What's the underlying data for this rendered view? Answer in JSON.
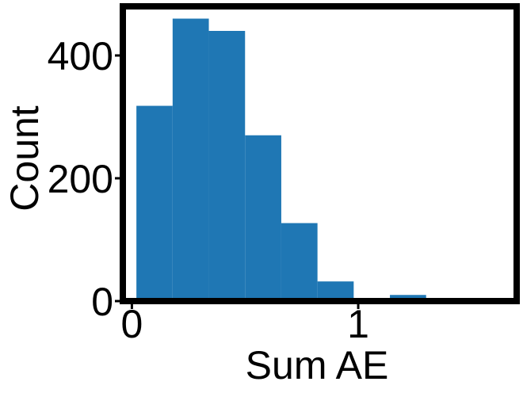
{
  "chart_data": {
    "type": "bar",
    "subtype": "histogram",
    "title": "",
    "xlabel": "Sum AE",
    "ylabel": "Count",
    "bins": [
      {
        "x0": 0.02,
        "x1": 0.18,
        "count": 318
      },
      {
        "x0": 0.18,
        "x1": 0.34,
        "count": 460
      },
      {
        "x0": 0.34,
        "x1": 0.5,
        "count": 440
      },
      {
        "x0": 0.5,
        "x1": 0.66,
        "count": 270
      },
      {
        "x0": 0.66,
        "x1": 0.82,
        "count": 127
      },
      {
        "x0": 0.82,
        "x1": 0.98,
        "count": 32
      },
      {
        "x0": 0.98,
        "x1": 1.14,
        "count": 0
      },
      {
        "x0": 1.14,
        "x1": 1.3,
        "count": 10
      },
      {
        "x0": 1.3,
        "x1": 1.46,
        "count": 0
      },
      {
        "x0": 1.46,
        "x1": 1.62,
        "count": 4
      }
    ],
    "xlim": [
      -0.04,
      1.7
    ],
    "ylim": [
      0,
      480
    ],
    "xticks": [
      {
        "value": 0,
        "label": "0"
      },
      {
        "value": 1,
        "label": "1"
      }
    ],
    "yticks": [
      {
        "value": 0,
        "label": "0"
      },
      {
        "value": 200,
        "label": "200"
      },
      {
        "value": 400,
        "label": "400"
      }
    ],
    "bar_color": "#1f77b4",
    "grid": false,
    "legend": "none"
  }
}
